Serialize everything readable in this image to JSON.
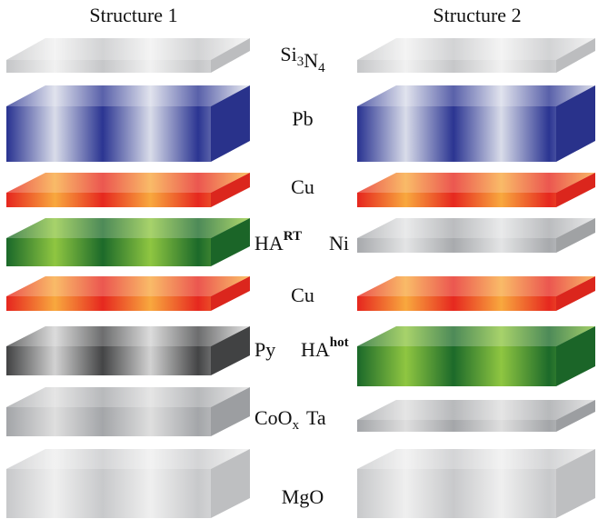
{
  "structures": [
    {
      "title": "Structure 1",
      "layers": [
        {
          "label": [
            {
              "base": "Si",
              "sub": "3"
            },
            {
              "base": "N",
              "sub": "4"
            }
          ],
          "color": "#c6c7c9",
          "light": "#f1f1f1"
        },
        {
          "label": [
            {
              "base": "Pb"
            }
          ],
          "color": "#2b3592",
          "light": "#d9dce9"
        },
        {
          "label": [
            {
              "base": "Cu"
            }
          ],
          "color": "#e6281f",
          "light": "#f8a83e"
        },
        {
          "label": [
            {
              "base": "HA",
              "sup": "RT"
            }
          ],
          "color": "#1c6a2a",
          "light": "#8fc641"
        },
        {
          "label": [
            {
              "base": "Cu"
            }
          ],
          "color": "#e6281f",
          "light": "#f8a83e"
        },
        {
          "label": [
            {
              "base": "Py"
            }
          ],
          "color": "#444546",
          "light": "#d2d2d2"
        },
        {
          "label": [
            {
              "base": "CoO",
              "sub": "x"
            }
          ],
          "color": "#a4a6a9",
          "light": "#dedede"
        },
        {
          "label": [
            {
              "base": "MgO"
            }
          ],
          "color": "#c8c9cb",
          "light": "#efefef"
        }
      ]
    },
    {
      "title": "Structure 2",
      "layers": [
        {
          "color": "#c6c7c9",
          "light": "#f1f1f1"
        },
        {
          "color": "#2b3592",
          "light": "#d9dce9"
        },
        {
          "color": "#e6281f",
          "light": "#f8a83e"
        },
        {
          "label": [
            {
              "base": "Ni"
            }
          ],
          "color": "#a8aaad",
          "light": "#e3e4e5"
        },
        {
          "color": "#e6281f",
          "light": "#f8a83e"
        },
        {
          "label": [
            {
              "base": "HA",
              "sup": "hot"
            }
          ],
          "color": "#1c6a2a",
          "light": "#8fc641"
        },
        {
          "label": [
            {
              "base": "Ta"
            }
          ],
          "color": "#a4a6a9",
          "light": "#dedede"
        },
        {
          "color": "#c8c9cb",
          "light": "#efefef"
        }
      ]
    }
  ]
}
